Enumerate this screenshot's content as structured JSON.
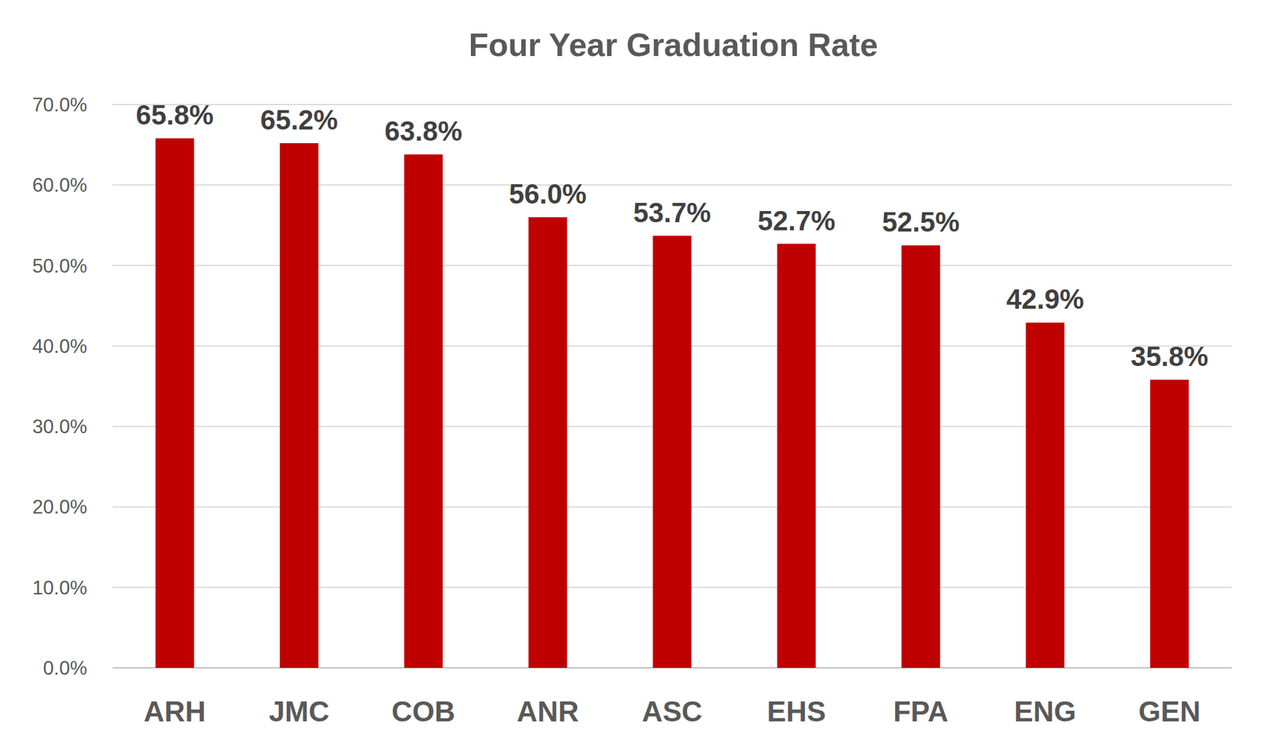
{
  "chart_data": {
    "type": "bar",
    "title": "Four Year Graduation Rate",
    "categories": [
      "ARH",
      "JMC",
      "COB",
      "ANR",
      "ASC",
      "EHS",
      "FPA",
      "ENG",
      "GEN"
    ],
    "values": [
      65.8,
      65.2,
      63.8,
      56.0,
      53.7,
      52.7,
      52.5,
      42.9,
      35.8
    ],
    "value_labels": [
      "65.8%",
      "65.2%",
      "63.8%",
      "56.0%",
      "53.7%",
      "52.7%",
      "52.5%",
      "42.9%",
      "35.8%"
    ],
    "color": "#c00000",
    "ylim": [
      0,
      70
    ],
    "yticks": [
      {
        "value": 0,
        "label": "0.0%"
      },
      {
        "value": 10,
        "label": "10.0%"
      },
      {
        "value": 20,
        "label": "20.0%"
      },
      {
        "value": 30,
        "label": "30.0%"
      },
      {
        "value": 40,
        "label": "40.0%"
      },
      {
        "value": 50,
        "label": "50.0%"
      },
      {
        "value": 60,
        "label": "60.0%"
      },
      {
        "value": 70,
        "label": "70.0%"
      }
    ],
    "grid": true,
    "data_labels": true
  }
}
